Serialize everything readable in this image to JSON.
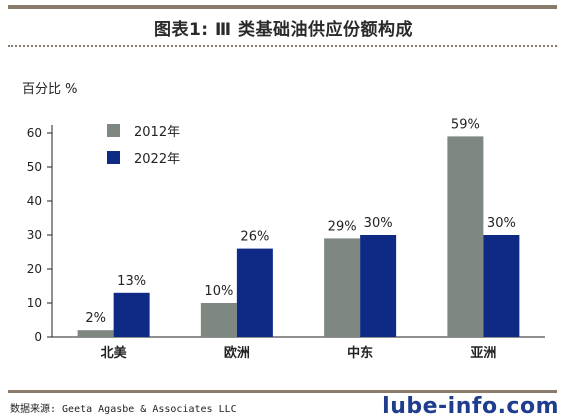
{
  "header": {
    "title": "图表1: Ⅲ 类基础油供应份额构成"
  },
  "chart_data": {
    "type": "bar",
    "ylabel": "百分比 %",
    "ylim": [
      0,
      60
    ],
    "yticks": [
      0,
      10,
      20,
      30,
      40,
      50,
      60
    ],
    "categories": [
      "北美",
      "欧洲",
      "中东",
      "亚洲"
    ],
    "series": [
      {
        "name": "2012年",
        "values": [
          2,
          10,
          29,
          59
        ],
        "labels": [
          "2%",
          "10%",
          "29%",
          "59%"
        ],
        "color": "#7e8780"
      },
      {
        "name": "2022年",
        "values": [
          13,
          26,
          30,
          30
        ],
        "labels": [
          "13%",
          "26%",
          "30%",
          "30%"
        ],
        "color": "#0f2a85"
      }
    ],
    "grid": false,
    "legend_position": "top-left"
  },
  "footer": {
    "source": "数据来源: Geeta Agasbe & Associates LLC",
    "watermark": "lube-info.com"
  }
}
